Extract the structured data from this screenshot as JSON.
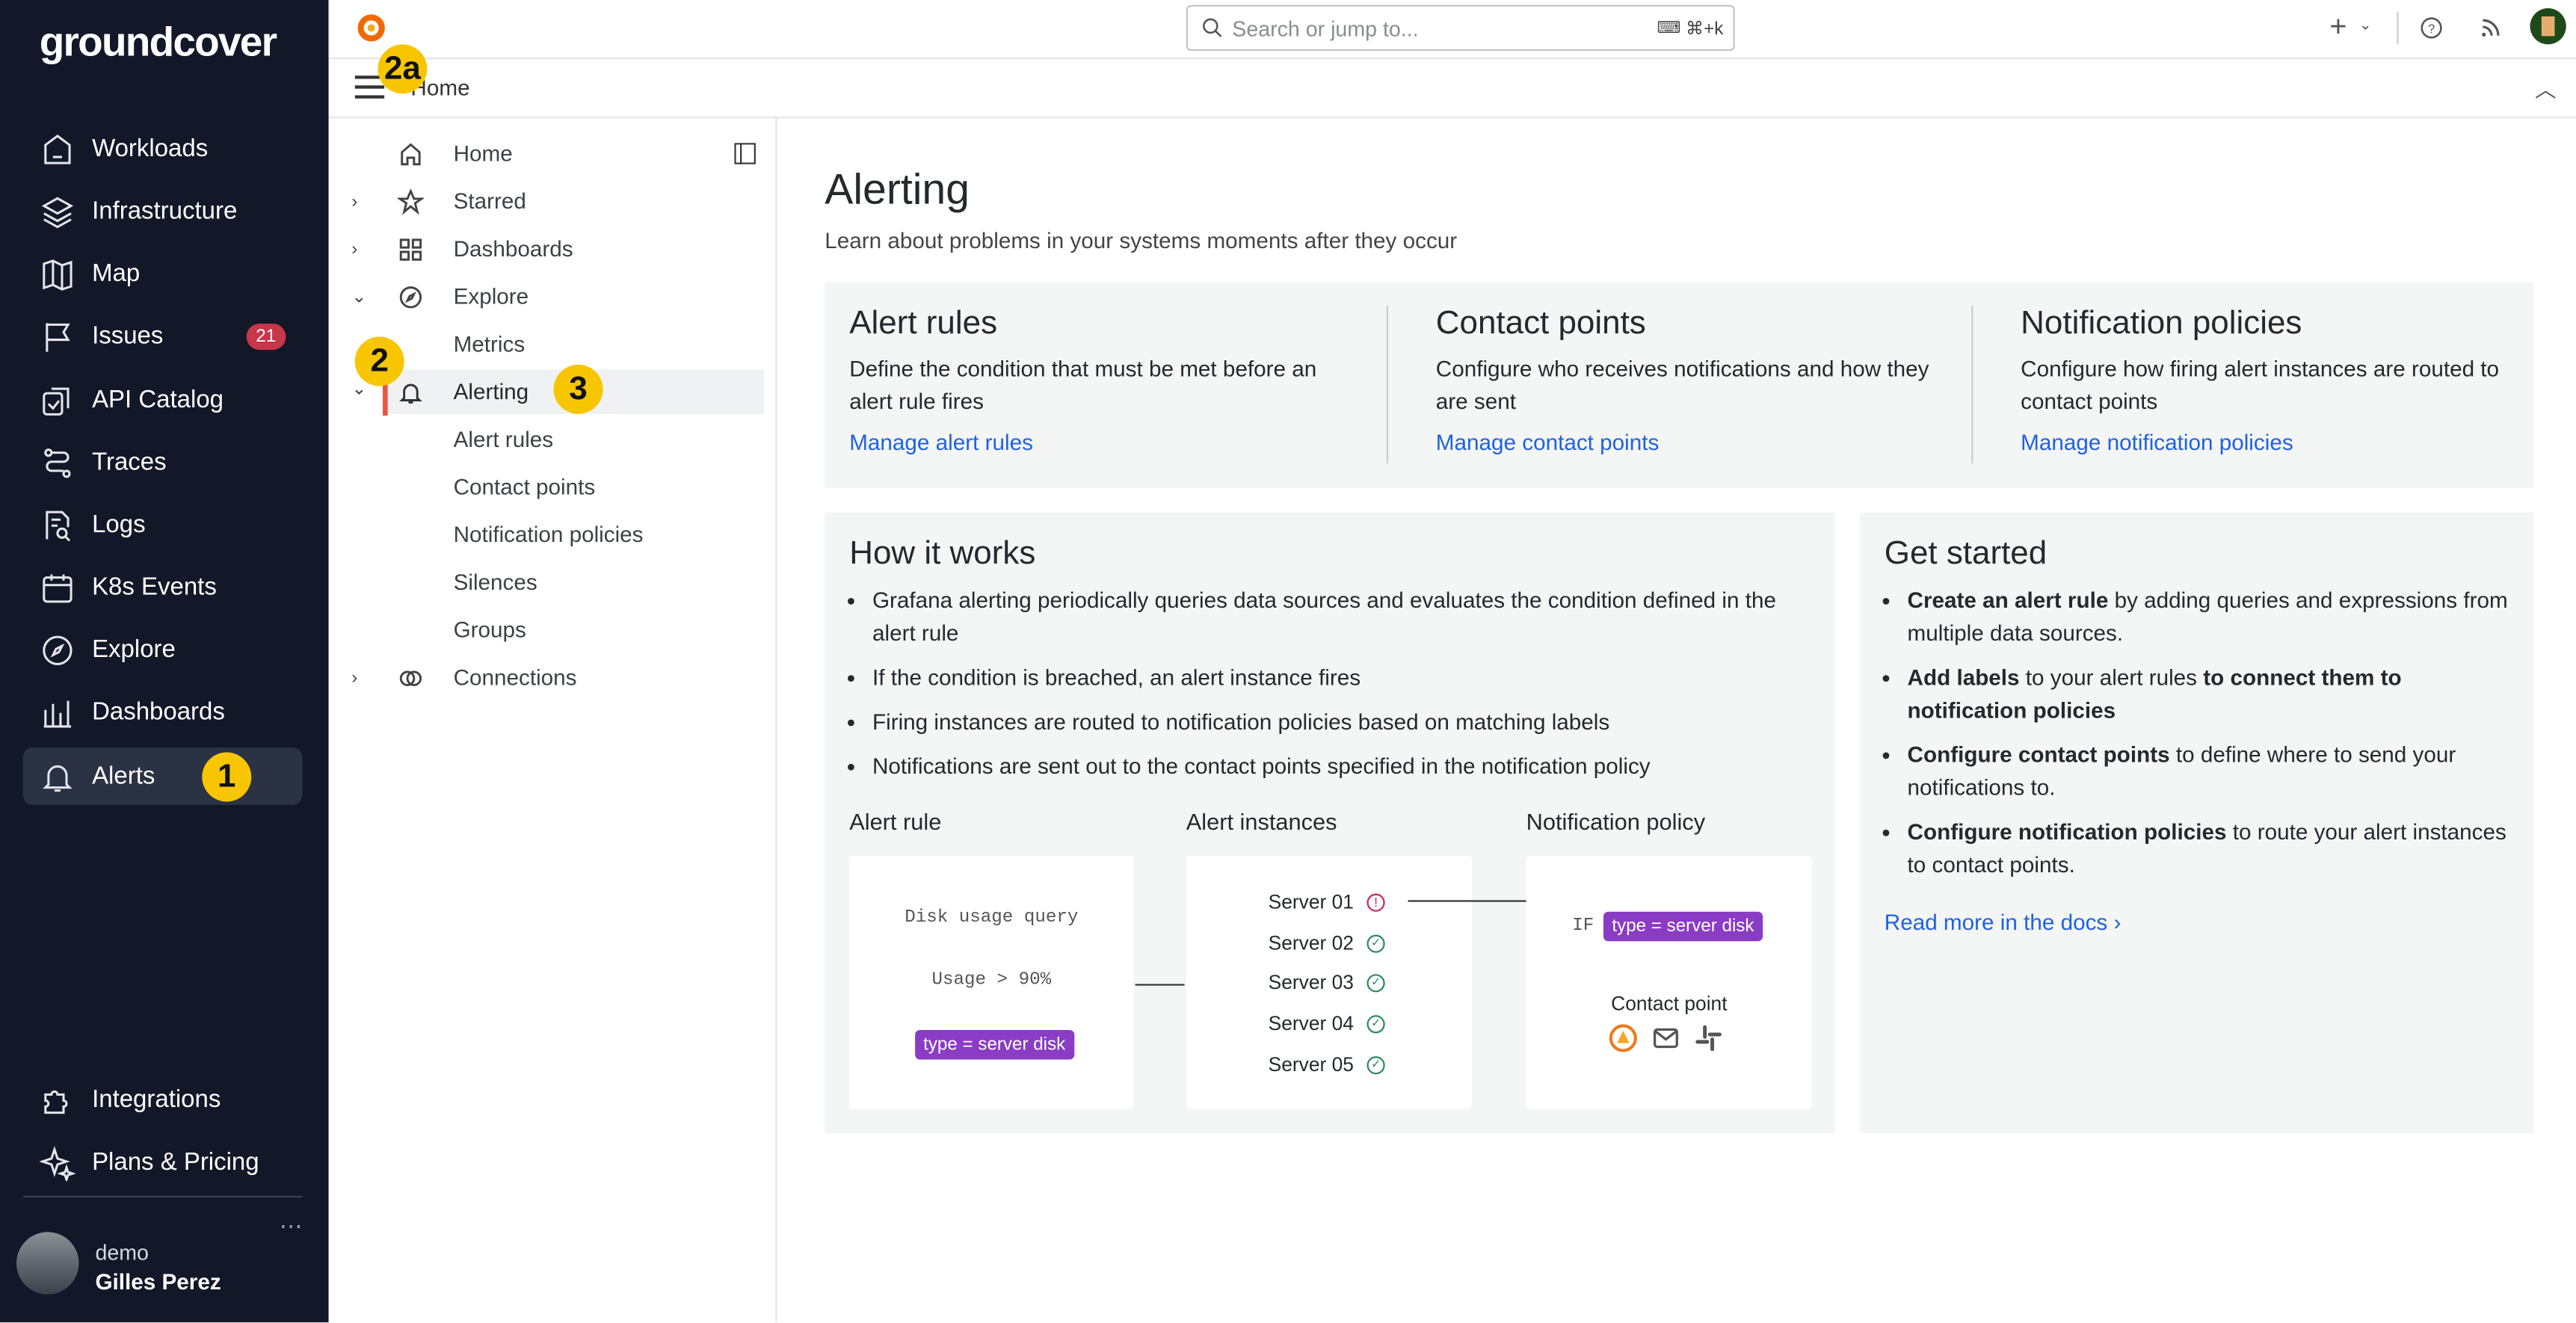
{
  "sidebar": {
    "logo": "groundcover",
    "items": [
      {
        "label": "Workloads"
      },
      {
        "label": "Infrastructure"
      },
      {
        "label": "Map"
      },
      {
        "label": "Issues",
        "badge": "21"
      },
      {
        "label": "API Catalog"
      },
      {
        "label": "Traces"
      },
      {
        "label": "Logs"
      },
      {
        "label": "K8s Events"
      },
      {
        "label": "Explore"
      },
      {
        "label": "Dashboards"
      },
      {
        "label": "Alerts",
        "selected": true
      }
    ],
    "bottom_items": [
      {
        "label": "Integrations"
      },
      {
        "label": "Plans & Pricing"
      }
    ],
    "user": {
      "org": "demo",
      "name": "Gilles Perez"
    },
    "more": "⋯"
  },
  "topbar": {
    "search_placeholder": "Search or jump to...",
    "shortcut": "⌘+k",
    "add": "+"
  },
  "breadcrumb": {
    "current": "Home"
  },
  "nav": {
    "items": [
      {
        "label": "Home"
      },
      {
        "label": "Starred"
      },
      {
        "label": "Dashboards"
      },
      {
        "label": "Explore"
      },
      {
        "label": "Metrics"
      },
      {
        "label": "Alerting"
      },
      {
        "label": "Alert rules"
      },
      {
        "label": "Contact points"
      },
      {
        "label": "Notification policies"
      },
      {
        "label": "Silences"
      },
      {
        "label": "Groups"
      },
      {
        "label": "Connections"
      }
    ]
  },
  "annotations": [
    "1",
    "2",
    "2a",
    "3"
  ],
  "main": {
    "title": "Alerting",
    "subtitle": "Learn about problems in your systems moments after they occur",
    "overview": [
      {
        "title": "Alert rules",
        "desc": "Define the condition that must be met before an alert rule fires",
        "link": "Manage alert rules"
      },
      {
        "title": "Contact points",
        "desc": "Configure who receives notifications and how they are sent",
        "link": "Manage contact points"
      },
      {
        "title": "Notification policies",
        "desc": "Configure how firing alert instances are routed to contact points",
        "link": "Manage notification policies"
      }
    ],
    "how": {
      "title": "How it works",
      "bullets": [
        "Grafana alerting periodically queries data sources and evaluates the condition defined in the alert rule",
        "If the condition is breached, an alert instance fires",
        "Firing instances are routed to notification policies based on matching labels",
        "Notifications are sent out to the contact points specified in the notification policy"
      ],
      "diagram": {
        "col1": "Alert rule",
        "col2": "Alert instances",
        "col3": "Notification policy",
        "query": "Disk usage query",
        "condition": "Usage > 90%",
        "label": "type  = server disk",
        "servers": [
          "Server 01",
          "Server 02",
          "Server 03",
          "Server 04",
          "Server 05"
        ],
        "if": "IF",
        "contact": "Contact point"
      }
    },
    "started": {
      "title": "Get started",
      "items": [
        {
          "b1": "Create an alert rule",
          "t1": " by adding queries and expressions from multiple data sources."
        },
        {
          "b1": "Add labels",
          "t1": " to your alert rules ",
          "b2": "to connect them to notification policies"
        },
        {
          "b1": "Configure contact points",
          "t1": " to define where to send your notifications to."
        },
        {
          "b1": "Configure notification policies",
          "t1": " to route your alert instances to contact points."
        }
      ],
      "link": "Read more in the docs ›"
    }
  },
  "colors": {
    "sidebar_bg": "#131829",
    "accent_link": "#1f62e0",
    "label_pill": "#8a3cc4",
    "annotation": "#f7c600",
    "badge": "#c8364a"
  }
}
